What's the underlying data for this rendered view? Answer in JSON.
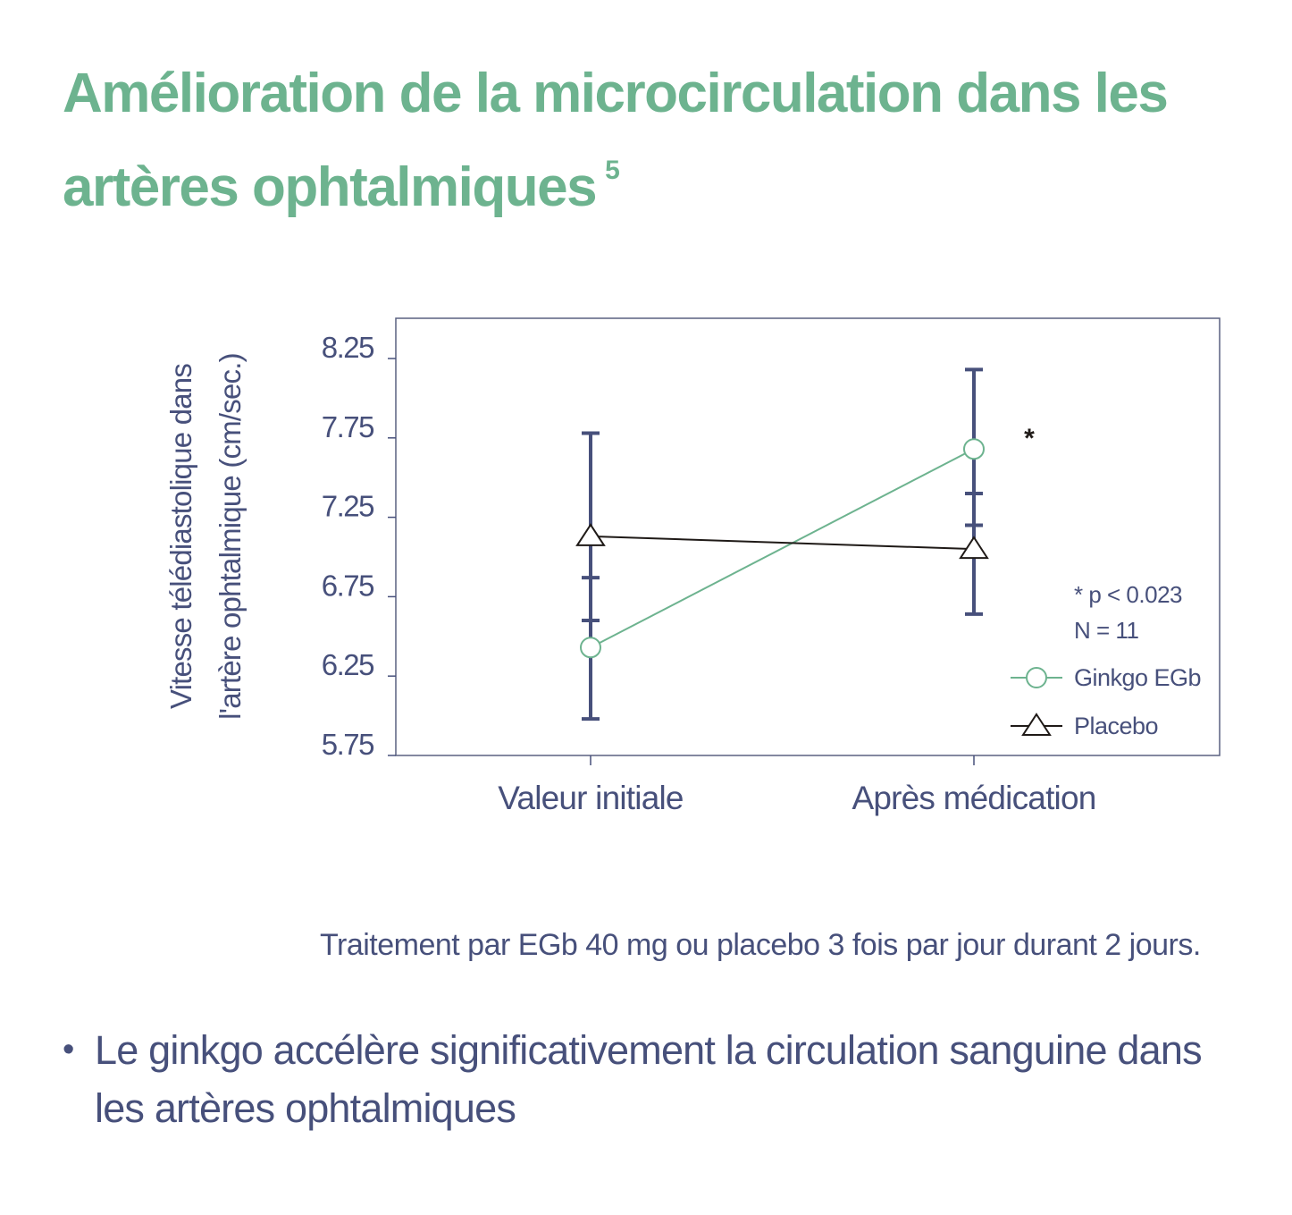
{
  "title": {
    "text": "Amélioration de la microcirculation dans les artères ophtalmiques",
    "footnote_ref": "5"
  },
  "chart_data": {
    "type": "line",
    "title": "",
    "ylabel_lines": [
      "Vitesse télédiastolique dans",
      "l'artère ophtalmique (cm/sec.)"
    ],
    "xlabel": "",
    "categories": [
      "Valeur initiale",
      "Après médication"
    ],
    "yticks": [
      "8.25",
      "7.75",
      "7.25",
      "6.75",
      "6.25",
      "5.75"
    ],
    "ylim": [
      5.75,
      8.25
    ],
    "grid": false,
    "legend_position": "bottom-right inside plot",
    "series": [
      {
        "name": "Ginkgo EGb",
        "marker": "circle",
        "color": "#6db38f",
        "values": [
          6.43,
          7.68
        ],
        "error_low": [
          5.98,
          7.2
        ],
        "error_high": [
          6.87,
          8.18
        ]
      },
      {
        "name": "Placebo",
        "marker": "triangle",
        "color": "#1f1a17",
        "values": [
          7.13,
          7.05
        ],
        "error_low": [
          6.6,
          6.64
        ],
        "error_high": [
          7.78,
          7.4
        ]
      }
    ],
    "annotations": {
      "significance_marker": "*",
      "notes": [
        "* p < 0.023",
        "N = 11"
      ]
    },
    "colors": {
      "axis": "#47507b",
      "error_bar": "#47507b",
      "frame": "#5a6080"
    }
  },
  "caption": "Traitement par EGb 40 mg ou placebo 3 fois par jour durant 2 jours.",
  "bullets": [
    {
      "symbol": "•",
      "text": "Le ginkgo accélère significativement la circulation sanguine dans les artères ophtalmiques"
    }
  ]
}
